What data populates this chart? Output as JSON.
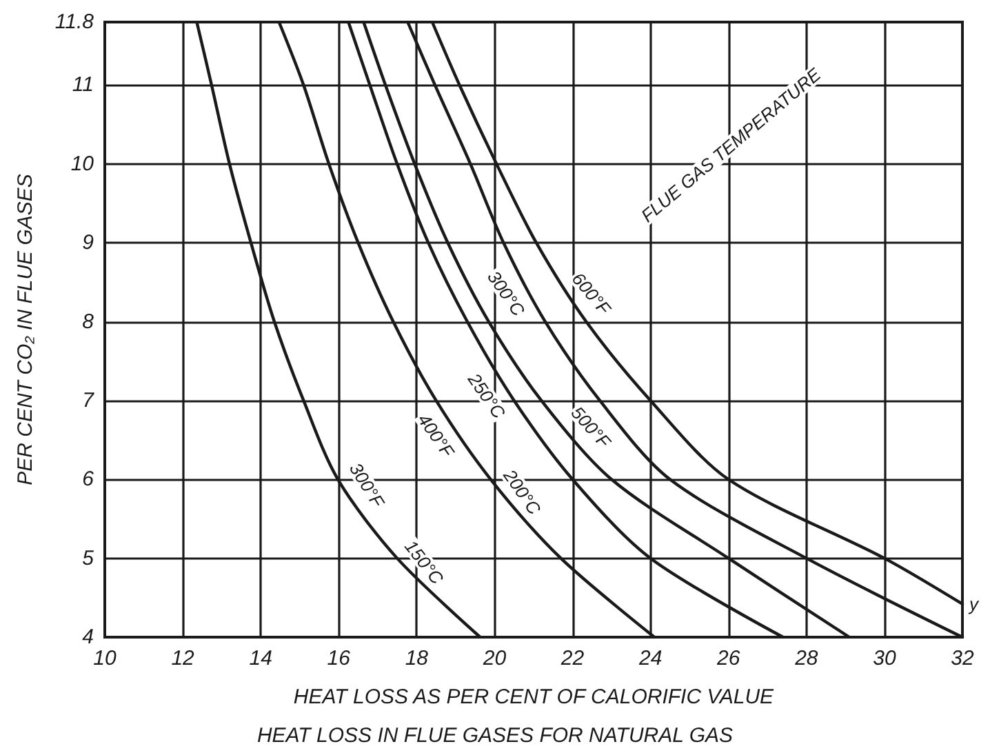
{
  "chart_data": {
    "type": "line",
    "title": "HEAT LOSS IN FLUE GASES FOR NATURAL GAS",
    "xlabel": "HEAT LOSS AS PER CENT OF CALORIFIC VALUE",
    "ylabel": "PER CENT CO₂ IN FLUE GASES",
    "xlim": [
      10,
      32
    ],
    "xticks": [
      10,
      12,
      14,
      16,
      18,
      20,
      22,
      24,
      26,
      28,
      30,
      32
    ],
    "ylim": [
      4,
      11.8
    ],
    "yticks": [
      4,
      5,
      6,
      7,
      8,
      9,
      10,
      11,
      11.8
    ],
    "grid": true,
    "marker": "none",
    "line_style": "solid",
    "series": [
      {
        "color": "#1a1a1a",
        "x": [
          12.36,
          12.74,
          13.2,
          13.75,
          14.35,
          15.1,
          15.98,
          17.5,
          19.63
        ],
        "values": [
          11.8,
          11,
          10,
          9,
          8,
          7,
          6,
          5,
          4
        ]
      },
      {
        "color": "#1a1a1a",
        "x": [
          14.47,
          15.1,
          15.75,
          16.5,
          17.4,
          18.5,
          19.9,
          21.7,
          24.1
        ],
        "values": [
          11.8,
          11,
          10,
          9,
          8,
          7,
          6,
          5,
          4
        ]
      },
      {
        "color": "#1a1a1a",
        "x": [
          16.25,
          16.8,
          17.5,
          18.3,
          19.3,
          20.5,
          22,
          24,
          27.4
        ],
        "values": [
          11.8,
          11,
          10,
          9,
          8,
          7,
          6,
          5,
          4
        ]
      },
      {
        "color": "#1a1a1a",
        "x": [
          16.64,
          17.2,
          17.95,
          18.8,
          19.85,
          21.2,
          23,
          26,
          29.1
        ],
        "values": [
          11.8,
          11,
          10,
          9,
          8,
          7,
          6,
          5,
          4
        ]
      },
      {
        "color": "#1a1a1a",
        "x": [
          17.77,
          18.47,
          19.38,
          20.23,
          21.3,
          22.7,
          24.5,
          28,
          32
        ],
        "values": [
          11.8,
          11,
          10,
          9,
          8,
          7,
          6,
          5,
          4
        ]
      },
      {
        "color": "#1a1a1a",
        "x": [
          18.4,
          19.1,
          20.05,
          21.07,
          22.35,
          24,
          26,
          30,
          32
        ],
        "values": [
          11.8,
          11,
          10,
          9,
          8,
          7,
          6,
          5,
          4.42
        ]
      }
    ],
    "annotations": [
      {
        "text": "300°F",
        "x": 16.3,
        "y": 5.8
      },
      {
        "text": "150°C",
        "x": 17.8,
        "y": 4.8
      },
      {
        "text": "400°F",
        "x": 18.9,
        "y": 6.7
      },
      {
        "text": "200°C",
        "x": 20.3,
        "y": 5.7
      },
      {
        "text": "250°C",
        "x": 20.2,
        "y": 7.2
      },
      {
        "text": "500°F",
        "x": 22.1,
        "y": 6.5
      },
      {
        "text": "300°C",
        "x": 20.7,
        "y": 8.5
      },
      {
        "text": "600°F",
        "x": 22.1,
        "y": 8.2
      },
      "FLUE GAS TEMPERATURE",
      {
        "text": "y",
        "x": 32,
        "y": 4.42
      }
    ]
  }
}
